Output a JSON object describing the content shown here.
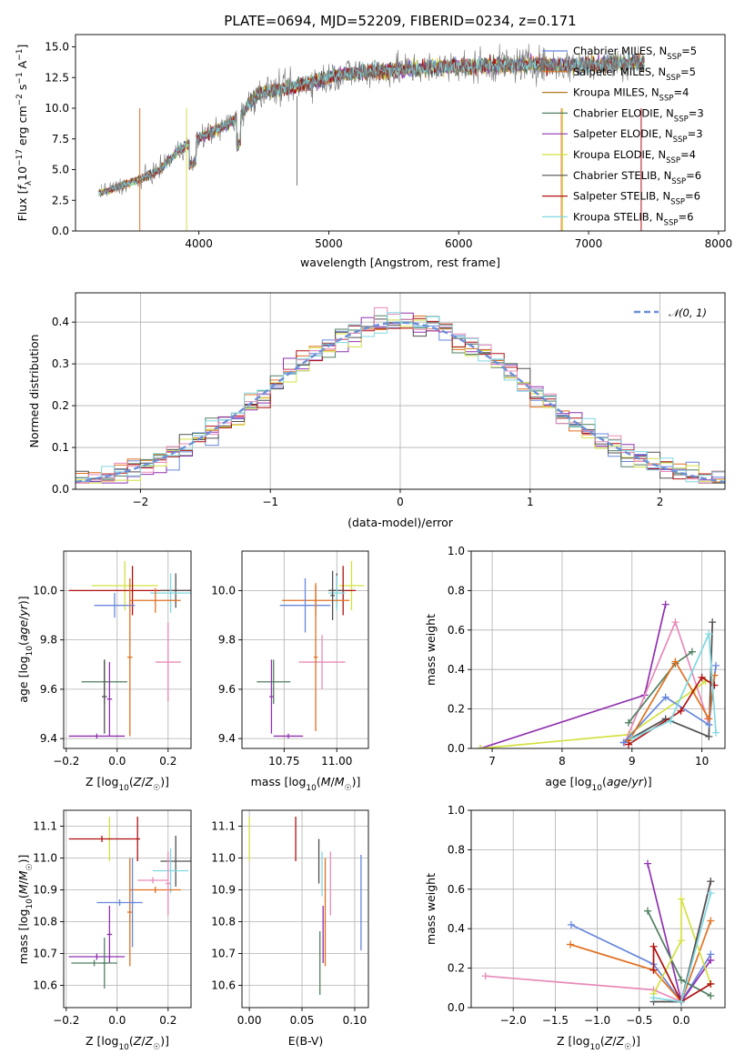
{
  "figure": {
    "title": "PLATE=0694, MJD=52209, FIBERID=0234, z=0.171"
  },
  "chart_data": [
    {
      "id": "spectrum",
      "type": "line",
      "title": "PLATE=0694, MJD=52209, FIBERID=0234, z=0.171",
      "xlabel": "wavelength [Angstrom, rest frame]",
      "ylabel": "Flux [f_λ 10^-17 erg cm^-2 s^-1 A^-1]",
      "xlim": [
        3050,
        8050
      ],
      "ylim": [
        0,
        16
      ],
      "xticks": [
        4000,
        5000,
        6000,
        7000,
        8000
      ],
      "xtick_labels": [
        "4000",
        "5000",
        "6000",
        "7000",
        "8000"
      ],
      "yticks": [
        0,
        2.5,
        5,
        7.5,
        10,
        12.5,
        15
      ],
      "ytick_labels": [
        "0.0",
        "2.5",
        "5.0",
        "7.5",
        "10.0",
        "12.5",
        "15.0"
      ],
      "grid": false,
      "legend_position": "right",
      "data": {
        "wavelength": [
          3250,
          3400,
          3550,
          3700,
          3850,
          4000,
          4150,
          4300,
          4450,
          4600,
          4750,
          4900,
          5050,
          5200,
          5350,
          5500,
          5650,
          5800,
          5950,
          6100,
          6250,
          6400,
          6550,
          6700,
          6850,
          7000,
          7150,
          7300,
          7430
        ],
        "flux": [
          3.1,
          3.7,
          4.2,
          5.0,
          6.6,
          7.6,
          8.3,
          9.2,
          11.2,
          11.5,
          11.8,
          12.2,
          12.7,
          12.9,
          13.0,
          13.1,
          13.2,
          13.3,
          13.4,
          13.4,
          13.5,
          13.5,
          13.6,
          13.5,
          13.5,
          13.6,
          13.6,
          13.7,
          13.7
        ]
      },
      "series": [
        {
          "label": "Chabrier MILES, N",
          "sub": "SSP",
          "eq": "=5",
          "color": "#6688dd"
        },
        {
          "label": "Salpeter MILES, N",
          "sub": "SSP",
          "eq": "=5",
          "color": "#e07020"
        },
        {
          "label": "Kroupa MILES, N",
          "sub": "SSP",
          "eq": "=4",
          "color": "#b07a20"
        },
        {
          "label": "Chabrier ELODIE, N",
          "sub": "SSP",
          "eq": "=3",
          "color": "#507f60"
        },
        {
          "label": "Salpeter ELODIE, N",
          "sub": "SSP",
          "eq": "=3",
          "color": "#9030b0"
        },
        {
          "label": "Kroupa ELODIE, N",
          "sub": "SSP",
          "eq": "=4",
          "color": "#d4e040"
        },
        {
          "label": "Chabrier STELIB, N",
          "sub": "SSP",
          "eq": "=6",
          "color": "#505050"
        },
        {
          "label": "Salpeter STELIB, N",
          "sub": "SSP",
          "eq": "=6",
          "color": "#b01010"
        },
        {
          "label": "Kroupa STELIB, N",
          "sub": "SSP",
          "eq": "=6",
          "color": "#80d8e0"
        }
      ]
    },
    {
      "id": "residuals",
      "type": "line",
      "xlabel": "(data-model)/error",
      "ylabel": "Normed distribution",
      "xlim": [
        -2.5,
        2.5
      ],
      "ylim": [
        0,
        0.47
      ],
      "xticks": [
        -2,
        -1,
        0,
        1,
        2
      ],
      "xtick_labels": [
        "−2",
        "−1",
        "0",
        "1",
        "2"
      ],
      "yticks": [
        0,
        0.1,
        0.2,
        0.3,
        0.4
      ],
      "ytick_labels": [
        "0.0",
        "0.1",
        "0.2",
        "0.3",
        "0.4"
      ],
      "grid": true,
      "legend": {
        "label": "𝒩(0, 1)",
        "position": "top-right"
      },
      "curve": {
        "name": "𝒩(0, 1)",
        "mean": 0,
        "sigma": 1,
        "color": "#6a8fd8"
      },
      "bin_width": 0.1,
      "x_range": [
        -2.5,
        2.5
      ],
      "series_colors": [
        "#6688dd",
        "#e07020",
        "#507f60",
        "#9030b0",
        "#d4e040",
        "#505050",
        "#b01010",
        "#e88ab8",
        "#80d8e0"
      ]
    },
    {
      "id": "age_vs_Z",
      "type": "scatter",
      "xlabel": "Z [log10(Z/Z☉)]",
      "ylabel": "age [log10(age/yr)]",
      "xlim": [
        -0.21,
        0.29
      ],
      "ylim": [
        9.36,
        10.16
      ],
      "xticks": [
        -0.2,
        0,
        0.2
      ],
      "xtick_labels": [
        "−0.2",
        "0.0",
        "0.2"
      ],
      "yticks": [
        9.4,
        9.6,
        9.8,
        10.0
      ],
      "ytick_labels": [
        "9.4",
        "9.6",
        "9.8",
        "10.0"
      ],
      "grid": true,
      "points": [
        {
          "x": 0.03,
          "xerr": 0.13,
          "y": 10.02,
          "yerr": 0.1,
          "color": "#d4e040"
        },
        {
          "x": 0.06,
          "xerr": 0.25,
          "y": 10.0,
          "yerr": 0.1,
          "color": "#b01010"
        },
        {
          "x": 0.23,
          "xerr": 0.06,
          "y": 10.0,
          "yerr": 0.07,
          "color": "#505050"
        },
        {
          "x": 0.21,
          "xerr": 0.08,
          "y": 9.99,
          "yerr": 0.08,
          "color": "#80d8e0"
        },
        {
          "x": 0.15,
          "xerr": 0.1,
          "y": 9.96,
          "yerr": 0.05,
          "color": "#e07020"
        },
        {
          "x": -0.01,
          "xerr": 0.08,
          "y": 9.94,
          "yerr": 0.05,
          "color": "#6688dd"
        },
        {
          "x": 0.2,
          "xerr": 0.05,
          "y": 9.71,
          "yerr": 0.16,
          "color": "#e88ab8"
        },
        {
          "x": 0.05,
          "xerr": 0.01,
          "y": 9.73,
          "yerr": 0.32,
          "color": "#e07020"
        },
        {
          "x": -0.05,
          "xerr": 0.09,
          "y": 9.63,
          "yerr": 0.09,
          "color": "#507f60"
        },
        {
          "x": -0.03,
          "xerr": 0.01,
          "y": 9.56,
          "yerr": 0.15,
          "color": "#9030b0"
        },
        {
          "x": -0.08,
          "xerr": 0.11,
          "y": 9.41,
          "yerr": 0.01,
          "color": "#9030b0"
        },
        {
          "x": -0.05,
          "xerr": 0.01,
          "y": 9.57,
          "yerr": 0.15,
          "color": "#505050"
        }
      ]
    },
    {
      "id": "age_vs_mass",
      "type": "scatter",
      "xlabel": "mass [log10(M/M☉)]",
      "ylabel": "",
      "xlim": [
        10.55,
        11.15
      ],
      "ylim": [
        9.36,
        10.16
      ],
      "xticks": [
        10.75,
        11.0
      ],
      "xtick_labels": [
        "10.75",
        "11.00"
      ],
      "yticks": [
        9.4,
        9.6,
        9.8,
        10.0
      ],
      "ytick_labels": [
        "9.4",
        "9.6",
        "9.8",
        "10.0"
      ],
      "grid": true,
      "points": [
        {
          "x": 11.07,
          "xerr": 0.06,
          "y": 10.02,
          "yerr": 0.1,
          "color": "#d4e040"
        },
        {
          "x": 11.03,
          "xerr": 0.06,
          "y": 10.0,
          "yerr": 0.1,
          "color": "#b01010"
        },
        {
          "x": 11.0,
          "xerr": 0.04,
          "y": 10.0,
          "yerr": 0.07,
          "color": "#505050"
        },
        {
          "x": 11.0,
          "xerr": 0.04,
          "y": 9.99,
          "yerr": 0.07,
          "color": "#80d8e0"
        },
        {
          "x": 10.9,
          "xerr": 0.16,
          "y": 9.96,
          "yerr": 0.06,
          "color": "#e07020"
        },
        {
          "x": 10.85,
          "xerr": 0.12,
          "y": 9.94,
          "yerr": 0.11,
          "color": "#6688dd"
        },
        {
          "x": 10.93,
          "xerr": 0.11,
          "y": 9.71,
          "yerr": 0.11,
          "color": "#e88ab8"
        },
        {
          "x": 10.9,
          "xerr": 0.01,
          "y": 9.73,
          "yerr": 0.3,
          "color": "#e07020"
        },
        {
          "x": 10.7,
          "xerr": 0.08,
          "y": 9.63,
          "yerr": 0.09,
          "color": "#507f60"
        },
        {
          "x": 10.69,
          "xerr": 0.01,
          "y": 9.57,
          "yerr": 0.15,
          "color": "#9030b0"
        },
        {
          "x": 10.77,
          "xerr": 0.07,
          "y": 9.41,
          "yerr": 0.01,
          "color": "#9030b0"
        },
        {
          "x": 10.98,
          "xerr": 0.01,
          "y": 9.98,
          "yerr": 0.1,
          "color": "#505050"
        }
      ]
    },
    {
      "id": "mass_weight_vs_age",
      "type": "line",
      "xlabel": "age [log10(age/yr)]",
      "ylabel": "mass weight",
      "xlim": [
        6.7,
        10.33
      ],
      "ylim": [
        0,
        1.0
      ],
      "xticks": [
        7,
        8,
        9,
        10
      ],
      "xtick_labels": [
        "7",
        "8",
        "9",
        "10"
      ],
      "yticks": [
        0,
        0.2,
        0.4,
        0.6,
        0.8,
        1.0
      ],
      "ytick_labels": [
        "0.0",
        "0.2",
        "0.4",
        "0.6",
        "0.8",
        "1.0"
      ],
      "grid": true,
      "series": [
        {
          "color": "#9030b0",
          "x": [
            6.83,
            9.18,
            9.48
          ],
          "y": [
            0.0,
            0.27,
            0.73
          ]
        },
        {
          "color": "#d4e040",
          "x": [
            6.83,
            8.95,
            9.9,
            10.05
          ],
          "y": [
            0.0,
            0.07,
            0.3,
            0.34
          ]
        },
        {
          "color": "#e88ab8",
          "x": [
            8.9,
            9.62,
            10.08
          ],
          "y": [
            0.03,
            0.64,
            0.15
          ]
        },
        {
          "color": "#507f60",
          "x": [
            8.95,
            9.62,
            9.86
          ],
          "y": [
            0.13,
            0.43,
            0.49
          ]
        },
        {
          "color": "#505050",
          "x": [
            8.88,
            9.48,
            10.1,
            10.15
          ],
          "y": [
            0.03,
            0.15,
            0.06,
            0.64
          ]
        },
        {
          "color": "#6688dd",
          "x": [
            8.88,
            9.48,
            10.1,
            10.2
          ],
          "y": [
            0.03,
            0.26,
            0.12,
            0.42
          ]
        },
        {
          "color": "#e07020",
          "x": [
            8.96,
            9.62,
            10.1,
            10.18
          ],
          "y": [
            0.04,
            0.44,
            0.15,
            0.37
          ]
        },
        {
          "color": "#b01010",
          "x": [
            8.95,
            9.7,
            10.0,
            10.18
          ],
          "y": [
            0.02,
            0.19,
            0.36,
            0.32
          ]
        },
        {
          "color": "#80d8e0",
          "x": [
            9.0,
            9.55,
            10.1,
            10.2
          ],
          "y": [
            0.05,
            0.14,
            0.58,
            0.08
          ]
        }
      ]
    },
    {
      "id": "mass_vs_Z",
      "type": "scatter",
      "xlabel": "Z [log10(Z/Z☉)]",
      "ylabel": "mass [log10(M/M☉)]",
      "xlim": [
        -0.21,
        0.29
      ],
      "ylim": [
        10.53,
        11.15
      ],
      "xticks": [
        -0.2,
        0,
        0.2
      ],
      "xtick_labels": [
        "−0.2",
        "0.0",
        "0.2"
      ],
      "yticks": [
        10.6,
        10.7,
        10.8,
        10.9,
        11.0,
        11.1
      ],
      "ytick_labels": [
        "10.6",
        "10.7",
        "10.8",
        "10.9",
        "11.0",
        "11.1"
      ],
      "grid": true,
      "points": [
        {
          "x": -0.03,
          "xerr": 0.01,
          "y": 11.06,
          "yerr": 0.07,
          "color": "#d4e040"
        },
        {
          "x": -0.06,
          "xerr": 0.13,
          "y": 11.06,
          "yerr": 0.01,
          "color": "#b01010"
        },
        {
          "x": 0.08,
          "xerr": 0.01,
          "y": 11.06,
          "yerr": 0.07,
          "color": "#b01010"
        },
        {
          "x": 0.23,
          "xerr": 0.06,
          "y": 10.99,
          "yerr": 0.08,
          "color": "#505050"
        },
        {
          "x": 0.21,
          "xerr": 0.07,
          "y": 10.96,
          "yerr": 0.07,
          "color": "#80d8e0"
        },
        {
          "x": 0.15,
          "xerr": 0.1,
          "y": 10.9,
          "yerr": 0.01,
          "color": "#e07020"
        },
        {
          "x": 0.05,
          "xerr": 0.01,
          "y": 10.83,
          "yerr": 0.17,
          "color": "#e07020"
        },
        {
          "x": 0.14,
          "xerr": 0.06,
          "y": 10.93,
          "yerr": 0.01,
          "color": "#e88ab8"
        },
        {
          "x": 0.2,
          "xerr": 0.01,
          "y": 10.92,
          "yerr": 0.1,
          "color": "#e88ab8"
        },
        {
          "x": 0.01,
          "xerr": 0.09,
          "y": 10.86,
          "yerr": 0.01,
          "color": "#6688dd"
        },
        {
          "x": 0.06,
          "xerr": 0.01,
          "y": 10.86,
          "yerr": 0.14,
          "color": "#6688dd"
        },
        {
          "x": -0.08,
          "xerr": 0.11,
          "y": 10.69,
          "yerr": 0.01,
          "color": "#9030b0"
        },
        {
          "x": -0.03,
          "xerr": 0.01,
          "y": 10.76,
          "yerr": 0.09,
          "color": "#9030b0"
        },
        {
          "x": -0.09,
          "xerr": 0.09,
          "y": 10.67,
          "yerr": 0.01,
          "color": "#507f60"
        },
        {
          "x": -0.05,
          "xerr": 0.01,
          "y": 10.67,
          "yerr": 0.08,
          "color": "#507f60"
        }
      ]
    },
    {
      "id": "mass_vs_EBV",
      "type": "scatter",
      "xlabel": "E(B-V)",
      "ylabel": "",
      "xlim": [
        -0.007,
        0.113
      ],
      "ylim": [
        10.53,
        11.15
      ],
      "xticks": [
        0,
        0.05,
        0.1
      ],
      "xtick_labels": [
        "0.00",
        "0.05",
        "0.10"
      ],
      "yticks": [
        10.6,
        10.7,
        10.8,
        10.9,
        11.0,
        11.1
      ],
      "ytick_labels": [
        "10.6",
        "10.7",
        "10.8",
        "10.9",
        "11.0",
        "11.1"
      ],
      "grid": true,
      "points": [
        {
          "x": 0.0,
          "y": 11.06,
          "yerr": 0.07,
          "color": "#d4e040"
        },
        {
          "x": 0.044,
          "y": 11.06,
          "yerr": 0.07,
          "color": "#b01010"
        },
        {
          "x": 0.066,
          "y": 10.99,
          "yerr": 0.07,
          "color": "#505050"
        },
        {
          "x": 0.069,
          "y": 10.95,
          "yerr": 0.07,
          "color": "#80d8e0"
        },
        {
          "x": 0.072,
          "y": 10.83,
          "yerr": 0.17,
          "color": "#e07020"
        },
        {
          "x": 0.077,
          "y": 10.92,
          "yerr": 0.1,
          "color": "#e88ab8"
        },
        {
          "x": 0.106,
          "y": 10.86,
          "yerr": 0.15,
          "color": "#6688dd"
        },
        {
          "x": 0.07,
          "y": 10.76,
          "yerr": 0.09,
          "color": "#9030b0"
        },
        {
          "x": 0.067,
          "y": 10.67,
          "yerr": 0.1,
          "color": "#507f60"
        }
      ]
    },
    {
      "id": "mass_weight_vs_Z",
      "type": "line",
      "xlabel": "Z [log10(Z/Z☉)]",
      "ylabel": "mass weight",
      "xlim": [
        -2.5,
        0.52
      ],
      "ylim": [
        0,
        1.0
      ],
      "xticks": [
        -2.0,
        -1.5,
        -1.0,
        -0.5,
        0.0
      ],
      "xtick_labels": [
        "−2.0",
        "−1.5",
        "−1.0",
        "−0.5",
        "0.0"
      ],
      "yticks": [
        0,
        0.2,
        0.4,
        0.6,
        0.8,
        1.0
      ],
      "ytick_labels": [
        "0.0",
        "0.2",
        "0.4",
        "0.6",
        "0.8",
        "1.0"
      ],
      "grid": true,
      "series": [
        {
          "color": "#6688dd",
          "x": [
            -1.31,
            -0.33,
            0.0,
            0.35
          ],
          "y": [
            0.42,
            0.22,
            0.03,
            0.27
          ]
        },
        {
          "color": "#e07020",
          "x": [
            -1.32,
            -0.33,
            0.0,
            0.35
          ],
          "y": [
            0.32,
            0.19,
            0.03,
            0.44
          ]
        },
        {
          "color": "#e88ab8",
          "x": [
            -2.33,
            -0.33,
            0.0,
            0.35
          ],
          "y": [
            0.16,
            0.09,
            0.03,
            0.64
          ]
        },
        {
          "color": "#9030b0",
          "x": [
            -0.4,
            0.0,
            0.35
          ],
          "y": [
            0.73,
            0.03,
            0.24
          ]
        },
        {
          "color": "#507f60",
          "x": [
            -0.4,
            0.0,
            0.35
          ],
          "y": [
            0.49,
            0.14,
            0.06
          ]
        },
        {
          "color": "#d4e040",
          "x": [
            -0.33,
            0.0,
            0.0,
            0.35
          ],
          "y": [
            0.07,
            0.34,
            0.55,
            0.12
          ]
        },
        {
          "color": "#505050",
          "x": [
            -0.33,
            0.0,
            0.35
          ],
          "y": [
            0.03,
            0.03,
            0.64
          ]
        },
        {
          "color": "#b01010",
          "x": [
            -0.33,
            -0.33,
            0.0,
            0.35
          ],
          "y": [
            0.19,
            0.31,
            0.03,
            0.12
          ]
        },
        {
          "color": "#80d8e0",
          "x": [
            -0.33,
            0.0,
            0.35
          ],
          "y": [
            0.05,
            0.03,
            0.58
          ]
        }
      ]
    }
  ]
}
